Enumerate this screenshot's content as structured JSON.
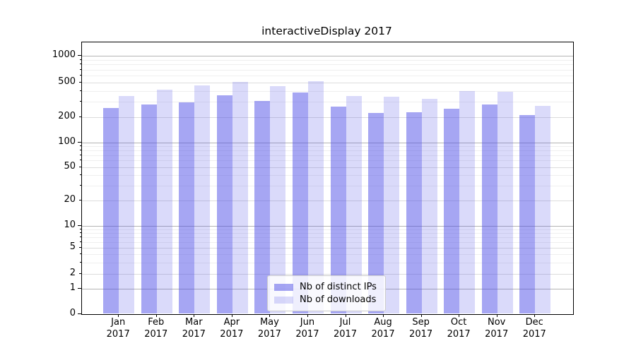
{
  "title": "interactiveDisplay 2017",
  "legend": {
    "position": "lower center",
    "items": [
      {
        "label": "Nb of distinct IPs"
      },
      {
        "label": "Nb of downloads"
      }
    ]
  },
  "chart_data": {
    "type": "bar",
    "title": "interactiveDisplay 2017",
    "xlabel": "",
    "ylabel": "",
    "x": {
      "months": [
        "Jan",
        "Feb",
        "Mar",
        "Apr",
        "May",
        "Jun",
        "Jul",
        "Aug",
        "Sep",
        "Oct",
        "Nov",
        "Dec"
      ],
      "year": "2017"
    },
    "series": [
      {
        "name": "Nb of distinct IPs",
        "color": "rgba(70,70,230,0.48)",
        "values": [
          256,
          282,
          296,
          355,
          306,
          387,
          265,
          222,
          229,
          250,
          282,
          213
        ]
      },
      {
        "name": "Nb of downloads",
        "color": "rgba(70,70,230,0.20)",
        "values": [
          350,
          417,
          461,
          509,
          455,
          519,
          351,
          344,
          325,
          400,
          394,
          271
        ]
      }
    ],
    "yscale": "symlog",
    "y_ticks": [
      0,
      1,
      2,
      5,
      10,
      20,
      50,
      100,
      200,
      500,
      1000
    ],
    "y_major_ticks": [
      0,
      1,
      10,
      100,
      1000
    ],
    "y_minor_ticks": [
      3,
      4,
      6,
      7,
      8,
      9,
      30,
      40,
      60,
      70,
      80,
      90,
      300,
      400,
      600,
      700,
      800,
      900
    ],
    "ylim": [
      0,
      1450
    ],
    "grid": true,
    "legend_position": "lower center"
  }
}
